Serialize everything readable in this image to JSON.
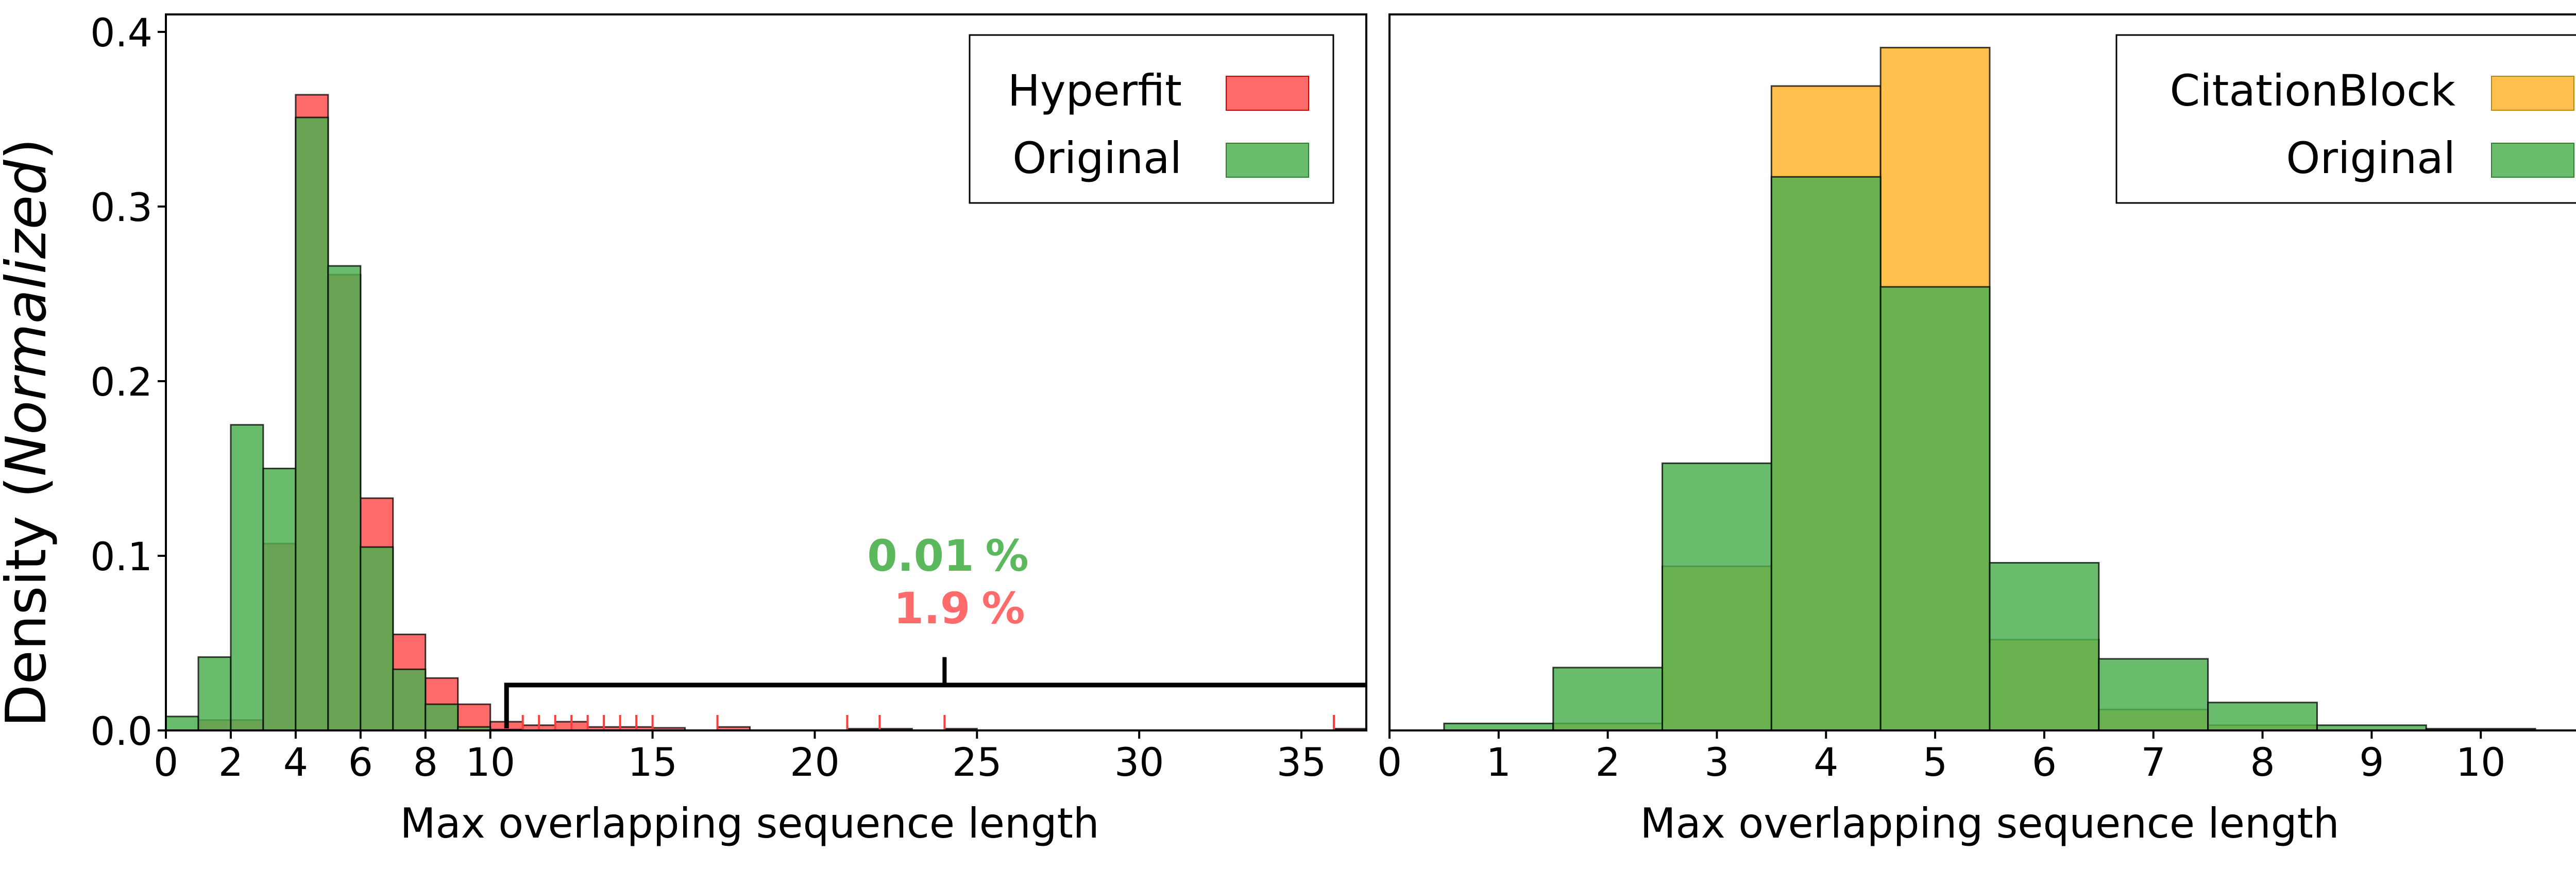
{
  "figure": {
    "ylabel_plain": "Density (",
    "ylabel_italic": "Normalized",
    "ylabel_close": ")"
  },
  "chart_data": [
    {
      "type": "bar",
      "id": "left",
      "xlabel": "Max overlapping sequence length",
      "ylabel": "Density (Normalized)",
      "xlim": [
        0,
        37
      ],
      "ylim": [
        0,
        0.41
      ],
      "bin_width": 1,
      "bins_left": [
        0,
        1,
        2,
        3,
        4,
        5,
        6,
        7,
        8,
        9,
        10,
        11,
        12,
        13,
        14,
        15,
        16,
        17,
        18,
        19,
        20,
        21,
        22,
        23,
        24,
        25,
        26,
        27,
        28,
        29,
        30,
        31,
        32,
        33,
        34,
        35,
        36
      ],
      "xticks": [
        0,
        2,
        4,
        6,
        8,
        10,
        15,
        20,
        25,
        30,
        35
      ],
      "yticks": [
        0.0,
        0.1,
        0.2,
        0.3,
        0.4
      ],
      "ytick_labels": [
        "0.0",
        "0.1",
        "0.2",
        "0.3",
        "0.4"
      ],
      "series": [
        {
          "name": "Hyperfit",
          "color": "#ff6a6a",
          "values": [
            0,
            0.006,
            0.006,
            0.107,
            0.364,
            0.261,
            0.133,
            0.055,
            0.03,
            0.015,
            0.005,
            0.003,
            0.005,
            0.002,
            0.002,
            0.0015,
            0,
            0.002,
            0,
            0,
            0,
            0.001,
            0.001,
            0,
            0.001,
            0,
            0,
            0,
            0,
            0,
            0,
            0,
            0,
            0,
            0,
            0,
            0.001
          ]
        },
        {
          "name": "Original",
          "color": "#4caf50",
          "values": [
            0.008,
            0.042,
            0.175,
            0.15,
            0.351,
            0.266,
            0.105,
            0.035,
            0.015,
            0.002,
            0.0005,
            0,
            0,
            0,
            0,
            0,
            0,
            0,
            0,
            0,
            0,
            0,
            0,
            0,
            0,
            0,
            0,
            0,
            0,
            0,
            0,
            0,
            0,
            0,
            0,
            0,
            0
          ]
        }
      ],
      "rug_hyperfit": [
        11,
        11.5,
        12,
        12.5,
        13,
        13.5,
        14,
        14.5,
        15,
        17,
        21,
        22,
        24,
        36
      ],
      "bracket": {
        "from": 10.5,
        "to": 37,
        "y": 0.026,
        "tick_at": 24,
        "tick_top": 0.042
      },
      "annotations": [
        {
          "value": "0.01",
          "unit": "%",
          "series": "Original",
          "color": "#5cb85c"
        },
        {
          "value": "1.9",
          "unit": "%",
          "series": "Hyperfit",
          "color": "#ff6a6a"
        }
      ],
      "legend": [
        {
          "label": "Hyperfit",
          "color": "#ff6a6a"
        },
        {
          "label": "Original",
          "color": "#4caf50"
        }
      ],
      "legend_loc": "top-right"
    },
    {
      "type": "bar",
      "id": "right",
      "xlabel": "Max overlapping sequence length",
      "xlim": [
        0,
        11
      ],
      "ylim": [
        0,
        0.41
      ],
      "bin_width": 1,
      "bins_left": [
        0.5,
        1.5,
        2.5,
        3.5,
        4.5,
        5.5,
        6.5,
        7.5,
        8.5,
        9.5
      ],
      "xticks": [
        0,
        1,
        2,
        3,
        4,
        5,
        6,
        7,
        8,
        9,
        10
      ],
      "yticks": [],
      "series": [
        {
          "name": "CitationBlock",
          "color": "#ffc04d",
          "values": [
            0,
            0.004,
            0.094,
            0.369,
            0.391,
            0.052,
            0.012,
            0.003,
            0,
            0
          ]
        },
        {
          "name": "Original",
          "color": "#4caf50",
          "values": [
            0.004,
            0.036,
            0.153,
            0.317,
            0.254,
            0.096,
            0.041,
            0.016,
            0.003,
            0.001
          ]
        }
      ],
      "legend": [
        {
          "label": "CitationBlock",
          "color": "#ffc04d"
        },
        {
          "label": "Original",
          "color": "#4caf50"
        }
      ],
      "legend_loc": "top-right"
    }
  ]
}
